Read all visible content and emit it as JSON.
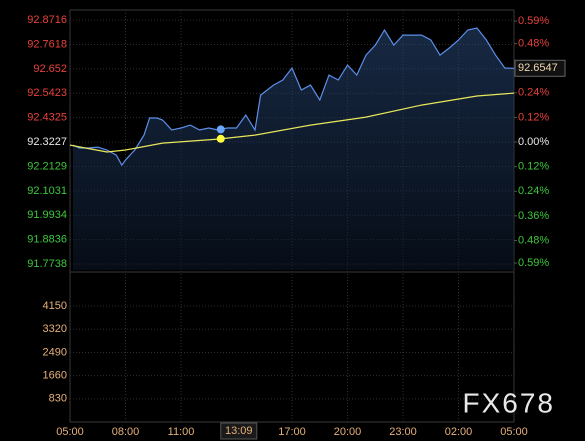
{
  "chart_data": {
    "type": "line",
    "xlim": [
      0,
      24
    ],
    "xticks": [
      {
        "value": 0,
        "label": "05:00"
      },
      {
        "value": 3,
        "label": "08:00"
      },
      {
        "value": 6,
        "label": "11:00"
      },
      {
        "value": 12,
        "label": "17:00"
      },
      {
        "value": 15,
        "label": "20:00"
      },
      {
        "value": 18,
        "label": "23:00"
      },
      {
        "value": 21,
        "label": "02:00"
      },
      {
        "value": 24,
        "label": "05:00"
      }
    ],
    "ylim": [
      91.747,
      92.917
    ],
    "yticks": [
      92.8716,
      92.7618,
      92.652,
      92.5423,
      92.4325,
      92.3227,
      92.2129,
      92.1031,
      91.9934,
      91.8836,
      91.7738
    ],
    "y2lim": [
      -0.624,
      0.644
    ],
    "y2ticks": [
      {
        "value": 0.59,
        "label": "0.59%"
      },
      {
        "value": 0.48,
        "label": "0.48%"
      },
      {
        "value": 0.36,
        "label": "0.36%"
      },
      {
        "value": 0.24,
        "label": "0.24%"
      },
      {
        "value": 0.12,
        "label": "0.12%"
      },
      {
        "value": 0,
        "label": "0.00%"
      },
      {
        "value": -0.12,
        "label": "0.12%"
      },
      {
        "value": -0.24,
        "label": "0.24%"
      },
      {
        "value": -0.36,
        "label": "0.36%"
      },
      {
        "value": -0.48,
        "label": "0.48%"
      },
      {
        "value": -0.59,
        "label": "0.59%"
      }
    ],
    "up_color": "#e8413c",
    "down_color": "#3cc83c",
    "grid": true,
    "series": [
      {
        "name": "price",
        "color": "#5b8fe8",
        "x": [
          0.16,
          0.5,
          1,
          1.5,
          2,
          2.5,
          2.8,
          3,
          3.5,
          4,
          4.3,
          4.7,
          5,
          5.5,
          6,
          6.5,
          7,
          7.5,
          8,
          8.5,
          9,
          9.5,
          10,
          10.3,
          11,
          11.5,
          12,
          12.5,
          13,
          13.5,
          14,
          14.5,
          15,
          15.5,
          16,
          16.5,
          17,
          17.5,
          18,
          18.5,
          19,
          19.5,
          20,
          20.5,
          21,
          21.5,
          22,
          22.5,
          23,
          23.5,
          24
        ],
        "values": [
          92.309,
          92.296,
          92.296,
          92.3,
          92.287,
          92.264,
          92.219,
          92.242,
          92.287,
          92.354,
          92.431,
          92.431,
          92.422,
          92.377,
          92.386,
          92.399,
          92.377,
          92.386,
          92.377,
          92.386,
          92.386,
          92.444,
          92.377,
          92.534,
          92.579,
          92.602,
          92.656,
          92.557,
          92.579,
          92.512,
          92.624,
          92.602,
          92.669,
          92.624,
          92.714,
          92.759,
          92.827,
          92.759,
          92.804,
          92.804,
          92.804,
          92.782,
          92.714,
          92.746,
          92.782,
          92.827,
          92.836,
          92.782,
          92.714,
          92.656,
          92.6547
        ]
      },
      {
        "name": "average",
        "color": "#e8e85a",
        "x": [
          0,
          2,
          3,
          5,
          8,
          10,
          13,
          16,
          19,
          22,
          24
        ],
        "values": [
          92.309,
          92.278,
          92.287,
          92.318,
          92.336,
          92.354,
          92.399,
          92.435,
          92.489,
          92.53,
          92.543
        ]
      }
    ],
    "last_price": 92.6547,
    "cursor": {
      "value": 8.15,
      "label": "13:09"
    },
    "volume": {
      "ylim": [
        0,
        5300
      ],
      "yticks": [
        4150,
        3320,
        2490,
        1660,
        830
      ]
    },
    "watermark": "FX678"
  }
}
